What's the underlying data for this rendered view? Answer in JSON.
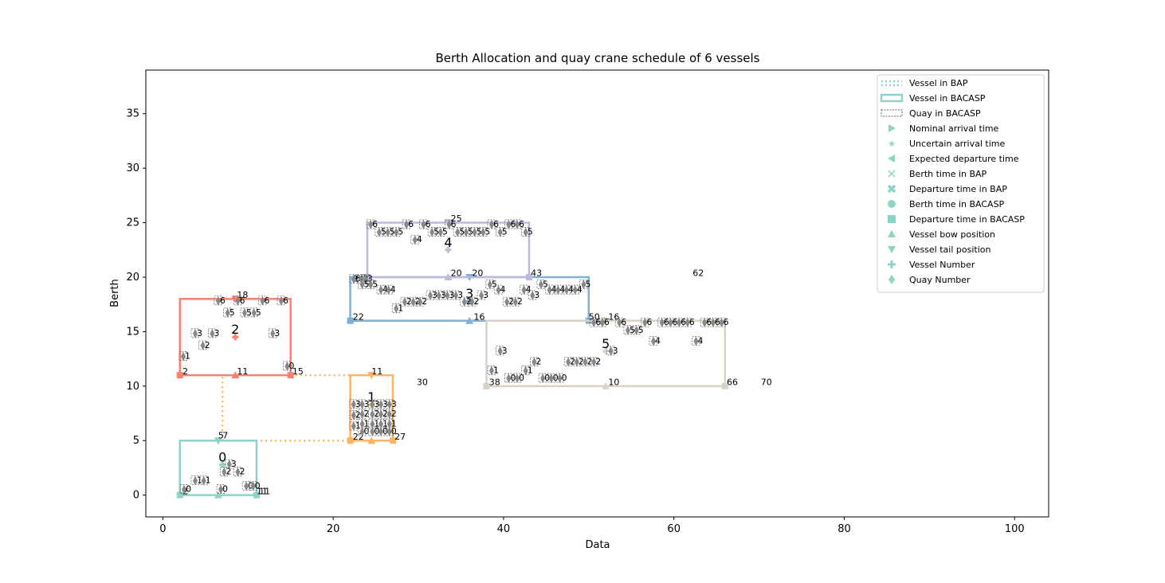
{
  "chart_data": {
    "type": "scatter",
    "title": "Berth Allocation and quay crane schedule  of 6 vessels",
    "xlabel": "Data",
    "ylabel": "Berth",
    "xlim": [
      -2,
      104
    ],
    "ylim": [
      -2,
      39
    ],
    "xticks": [
      0,
      20,
      40,
      60,
      80,
      100
    ],
    "yticks": [
      0,
      5,
      10,
      15,
      20,
      25,
      30,
      35
    ],
    "grid": false,
    "legend_position": "top-right",
    "colors": {
      "v0": "#8dd3c7",
      "v1": "#fdb462",
      "v2": "#fb8072",
      "v3": "#80b1d3",
      "v4": "#bebada",
      "v5": "#d9d2c7",
      "quay_gray": "#888888"
    },
    "legend": [
      {
        "label": "Vessel in BAP",
        "icon": "dotted-line"
      },
      {
        "label": "Vessel in BACASP",
        "icon": "solid-rect"
      },
      {
        "label": "Quay in BACASP",
        "icon": "dashed-rect"
      },
      {
        "label": "Nominal arrival time",
        "icon": "triangle-right"
      },
      {
        "label": "Uncertain arrival time",
        "icon": "star"
      },
      {
        "label": "Expected departure time",
        "icon": "triangle-left"
      },
      {
        "label": "Berth time in BAP",
        "icon": "x-thin"
      },
      {
        "label": "Departure time in BAP",
        "icon": "x-thick"
      },
      {
        "label": "Berth time in BACASP",
        "icon": "circle"
      },
      {
        "label": "Departure time in BACASP",
        "icon": "square"
      },
      {
        "label": "Vessel bow position",
        "icon": "triangle-up"
      },
      {
        "label": "Vessel tail position",
        "icon": "triangle-down"
      },
      {
        "label": "Vessel Number",
        "icon": "plus"
      },
      {
        "label": "Quay Number",
        "icon": "diamond"
      }
    ],
    "vessels": [
      {
        "id": "0",
        "color": "v0",
        "bacasp": [
          2,
          0,
          11,
          5
        ],
        "number_label": "0",
        "number_at": [
          7,
          2.8
        ],
        "labels": [
          {
            "x": 2.3,
            "y": 0.1,
            "t": "2"
          },
          {
            "x": 6.5,
            "y": 5.2,
            "t": "5"
          },
          {
            "x": 7,
            "y": 5.2,
            "t": "7"
          },
          {
            "x": 11,
            "y": 0.1,
            "t": "11"
          },
          {
            "x": 11.3,
            "y": 0.1,
            "t": "11"
          }
        ]
      },
      {
        "id": "1",
        "color": "v1",
        "bacasp": [
          22,
          5,
          27,
          11
        ],
        "number_label": "1",
        "number_at": [
          24.5,
          8.3
        ],
        "labels": [
          {
            "x": 22.3,
            "y": 5.1,
            "t": "22"
          },
          {
            "x": 27.2,
            "y": 5.1,
            "t": "27"
          },
          {
            "x": 24.5,
            "y": 11.1,
            "t": "11"
          }
        ]
      },
      {
        "id": "2",
        "color": "v2",
        "bacasp": [
          2,
          11,
          15,
          18
        ],
        "number_label": "2",
        "number_at": [
          8.5,
          14.5
        ],
        "labels": [
          {
            "x": 2.3,
            "y": 11.1,
            "t": "2"
          },
          {
            "x": 15.2,
            "y": 11.1,
            "t": "15"
          },
          {
            "x": 8.7,
            "y": 11.1,
            "t": "11"
          },
          {
            "x": 8.7,
            "y": 18.1,
            "t": "18"
          }
        ]
      },
      {
        "id": "3",
        "color": "v3",
        "bacasp": [
          22,
          16,
          50,
          20
        ],
        "number_label": "3",
        "number_at": [
          36,
          17.8
        ],
        "labels": [
          {
            "x": 22.3,
            "y": 16.1,
            "t": "22"
          },
          {
            "x": 50,
            "y": 16.1,
            "t": "50"
          },
          {
            "x": 36.5,
            "y": 16.1,
            "t": "16"
          },
          {
            "x": 22.3,
            "y": 19.6,
            "t": "24"
          }
        ]
      },
      {
        "id": "4",
        "color": "v4",
        "bacasp": [
          24,
          20,
          43,
          25
        ],
        "number_label": "4",
        "number_at": [
          33.5,
          22.5
        ],
        "labels": [
          {
            "x": 33.8,
            "y": 20.1,
            "t": "20"
          },
          {
            "x": 36.3,
            "y": 20.1,
            "t": "20"
          },
          {
            "x": 33.8,
            "y": 25.1,
            "t": "25"
          },
          {
            "x": 43.2,
            "y": 20.1,
            "t": "43"
          },
          {
            "x": 62.2,
            "y": 20.1,
            "t": "62"
          }
        ]
      },
      {
        "id": "5",
        "color": "v5",
        "bacasp": [
          38,
          10,
          66,
          16
        ],
        "number_label": "5",
        "number_at": [
          52,
          13.2
        ],
        "labels": [
          {
            "x": 38.3,
            "y": 10.1,
            "t": "38"
          },
          {
            "x": 66.2,
            "y": 10.1,
            "t": "66"
          },
          {
            "x": 52.3,
            "y": 10.1,
            "t": "10"
          },
          {
            "x": 52.3,
            "y": 16.1,
            "t": "16"
          },
          {
            "x": 70.2,
            "y": 10.1,
            "t": "70"
          },
          {
            "x": 29.8,
            "y": 10.1,
            "t": "30"
          }
        ]
      }
    ],
    "bap_links": [
      {
        "color": "v1",
        "points": [
          [
            7,
            5
          ],
          [
            7,
            11
          ]
        ]
      },
      {
        "color": "v1",
        "points": [
          [
            7,
            5
          ],
          [
            22,
            5
          ]
        ]
      },
      {
        "color": "v1",
        "points": [
          [
            15,
            11
          ],
          [
            24,
            11
          ]
        ]
      }
    ],
    "quay_labels": [
      {
        "x": 2.5,
        "y": 0.3,
        "t": "0"
      },
      {
        "x": 3.8,
        "y": 1.1,
        "t": "1"
      },
      {
        "x": 4.8,
        "y": 1.1,
        "t": "1"
      },
      {
        "x": 6.8,
        "y": 0.3,
        "t": "0"
      },
      {
        "x": 7.2,
        "y": 1.9,
        "t": "2"
      },
      {
        "x": 8.8,
        "y": 1.9,
        "t": "2"
      },
      {
        "x": 7.8,
        "y": 2.6,
        "t": "3"
      },
      {
        "x": 9.8,
        "y": 0.6,
        "t": "0"
      },
      {
        "x": 10.6,
        "y": 0.6,
        "t": "0"
      },
      {
        "x": 2.4,
        "y": 12.5,
        "t": "1"
      },
      {
        "x": 3.8,
        "y": 14.6,
        "t": "3"
      },
      {
        "x": 4.7,
        "y": 13.5,
        "t": "2"
      },
      {
        "x": 5.8,
        "y": 14.6,
        "t": "3"
      },
      {
        "x": 6.5,
        "y": 17.6,
        "t": "6"
      },
      {
        "x": 7.6,
        "y": 16.5,
        "t": "5"
      },
      {
        "x": 8.8,
        "y": 17.6,
        "t": "6"
      },
      {
        "x": 9.6,
        "y": 16.5,
        "t": "5"
      },
      {
        "x": 10.7,
        "y": 16.5,
        "t": "5"
      },
      {
        "x": 11.7,
        "y": 17.6,
        "t": "6"
      },
      {
        "x": 12.9,
        "y": 14.6,
        "t": "3"
      },
      {
        "x": 13.9,
        "y": 17.6,
        "t": "6"
      },
      {
        "x": 14.6,
        "y": 11.6,
        "t": "0"
      },
      {
        "x": 22.4,
        "y": 6.1,
        "t": "1"
      },
      {
        "x": 22.4,
        "y": 7.1,
        "t": "2"
      },
      {
        "x": 22.4,
        "y": 8.1,
        "t": "3"
      },
      {
        "x": 23.4,
        "y": 5.6,
        "t": "0"
      },
      {
        "x": 24.6,
        "y": 5.6,
        "t": "0"
      },
      {
        "x": 25.6,
        "y": 5.6,
        "t": "0"
      },
      {
        "x": 26.6,
        "y": 5.6,
        "t": "0"
      },
      {
        "x": 23.4,
        "y": 6.3,
        "t": "1"
      },
      {
        "x": 24.6,
        "y": 6.3,
        "t": "1"
      },
      {
        "x": 25.6,
        "y": 6.3,
        "t": "1"
      },
      {
        "x": 26.6,
        "y": 6.3,
        "t": "1"
      },
      {
        "x": 23.4,
        "y": 7.2,
        "t": "2"
      },
      {
        "x": 24.6,
        "y": 7.2,
        "t": "2"
      },
      {
        "x": 25.6,
        "y": 7.2,
        "t": "2"
      },
      {
        "x": 26.6,
        "y": 7.2,
        "t": "2"
      },
      {
        "x": 23.4,
        "y": 8.1,
        "t": "3"
      },
      {
        "x": 24.6,
        "y": 8.1,
        "t": "3"
      },
      {
        "x": 25.6,
        "y": 8.1,
        "t": "3"
      },
      {
        "x": 26.6,
        "y": 8.1,
        "t": "3"
      },
      {
        "x": 22.4,
        "y": 19.6,
        "t": "6"
      },
      {
        "x": 23.3,
        "y": 19.6,
        "t": "2"
      },
      {
        "x": 23.8,
        "y": 19.6,
        "t": "3"
      },
      {
        "x": 23.4,
        "y": 19.1,
        "t": "5"
      },
      {
        "x": 24.4,
        "y": 19.1,
        "t": "5"
      },
      {
        "x": 25.6,
        "y": 18.6,
        "t": "4"
      },
      {
        "x": 26.5,
        "y": 18.6,
        "t": "4"
      },
      {
        "x": 27.4,
        "y": 16.9,
        "t": "1"
      },
      {
        "x": 28.4,
        "y": 17.5,
        "t": "2"
      },
      {
        "x": 29.4,
        "y": 17.5,
        "t": "2"
      },
      {
        "x": 30.2,
        "y": 17.5,
        "t": "2"
      },
      {
        "x": 31.4,
        "y": 18.1,
        "t": "3"
      },
      {
        "x": 32.4,
        "y": 18.1,
        "t": "3"
      },
      {
        "x": 33.4,
        "y": 18.1,
        "t": "3"
      },
      {
        "x": 34.4,
        "y": 18.1,
        "t": "3"
      },
      {
        "x": 35.4,
        "y": 17.5,
        "t": "2"
      },
      {
        "x": 36.3,
        "y": 17.5,
        "t": "2"
      },
      {
        "x": 37.4,
        "y": 18.1,
        "t": "3"
      },
      {
        "x": 38.4,
        "y": 19.1,
        "t": "5"
      },
      {
        "x": 39.4,
        "y": 18.6,
        "t": "4"
      },
      {
        "x": 40.4,
        "y": 17.5,
        "t": "2"
      },
      {
        "x": 41.4,
        "y": 17.5,
        "t": "2"
      },
      {
        "x": 42.4,
        "y": 18.6,
        "t": "4"
      },
      {
        "x": 43.4,
        "y": 18.1,
        "t": "3"
      },
      {
        "x": 44.4,
        "y": 19.1,
        "t": "5"
      },
      {
        "x": 45.4,
        "y": 18.6,
        "t": "4"
      },
      {
        "x": 46.4,
        "y": 18.6,
        "t": "4"
      },
      {
        "x": 47.4,
        "y": 18.6,
        "t": "4"
      },
      {
        "x": 48.4,
        "y": 18.6,
        "t": "4"
      },
      {
        "x": 49.4,
        "y": 19.1,
        "t": "5"
      },
      {
        "x": 24.4,
        "y": 24.6,
        "t": "6"
      },
      {
        "x": 25.4,
        "y": 23.9,
        "t": "5"
      },
      {
        "x": 26.4,
        "y": 23.9,
        "t": "5"
      },
      {
        "x": 27.4,
        "y": 23.9,
        "t": "5"
      },
      {
        "x": 28.6,
        "y": 24.6,
        "t": "6"
      },
      {
        "x": 29.6,
        "y": 23.2,
        "t": "4"
      },
      {
        "x": 30.6,
        "y": 24.6,
        "t": "6"
      },
      {
        "x": 31.6,
        "y": 23.9,
        "t": "5"
      },
      {
        "x": 32.6,
        "y": 23.9,
        "t": "5"
      },
      {
        "x": 33.6,
        "y": 24.6,
        "t": "6"
      },
      {
        "x": 34.6,
        "y": 23.9,
        "t": "5"
      },
      {
        "x": 35.6,
        "y": 23.9,
        "t": "5"
      },
      {
        "x": 36.6,
        "y": 23.9,
        "t": "5"
      },
      {
        "x": 37.6,
        "y": 23.9,
        "t": "5"
      },
      {
        "x": 38.6,
        "y": 24.6,
        "t": "6"
      },
      {
        "x": 39.6,
        "y": 23.9,
        "t": "5"
      },
      {
        "x": 40.6,
        "y": 24.6,
        "t": "6"
      },
      {
        "x": 41.6,
        "y": 24.6,
        "t": "6"
      },
      {
        "x": 42.6,
        "y": 23.9,
        "t": "5"
      },
      {
        "x": 38.6,
        "y": 11.2,
        "t": "1"
      },
      {
        "x": 39.6,
        "y": 13.0,
        "t": "3"
      },
      {
        "x": 40.6,
        "y": 10.5,
        "t": "0"
      },
      {
        "x": 41.6,
        "y": 10.5,
        "t": "0"
      },
      {
        "x": 42.6,
        "y": 11.2,
        "t": "1"
      },
      {
        "x": 43.6,
        "y": 12.0,
        "t": "2"
      },
      {
        "x": 44.6,
        "y": 10.5,
        "t": "0"
      },
      {
        "x": 45.6,
        "y": 10.5,
        "t": "0"
      },
      {
        "x": 46.6,
        "y": 10.5,
        "t": "0"
      },
      {
        "x": 47.6,
        "y": 12.0,
        "t": "2"
      },
      {
        "x": 48.6,
        "y": 12.0,
        "t": "2"
      },
      {
        "x": 49.6,
        "y": 12.0,
        "t": "2"
      },
      {
        "x": 50.6,
        "y": 12.0,
        "t": "2"
      },
      {
        "x": 52.6,
        "y": 13.0,
        "t": "3"
      },
      {
        "x": 50.6,
        "y": 15.6,
        "t": "6"
      },
      {
        "x": 51.6,
        "y": 15.6,
        "t": "6"
      },
      {
        "x": 53.6,
        "y": 15.6,
        "t": "6"
      },
      {
        "x": 54.6,
        "y": 14.9,
        "t": "5"
      },
      {
        "x": 55.6,
        "y": 14.9,
        "t": "5"
      },
      {
        "x": 56.6,
        "y": 15.6,
        "t": "6"
      },
      {
        "x": 57.6,
        "y": 13.9,
        "t": "4"
      },
      {
        "x": 58.6,
        "y": 15.6,
        "t": "6"
      },
      {
        "x": 59.6,
        "y": 15.6,
        "t": "6"
      },
      {
        "x": 60.6,
        "y": 15.6,
        "t": "6"
      },
      {
        "x": 61.6,
        "y": 15.6,
        "t": "6"
      },
      {
        "x": 62.6,
        "y": 13.9,
        "t": "4"
      },
      {
        "x": 63.6,
        "y": 15.6,
        "t": "6"
      },
      {
        "x": 64.6,
        "y": 15.6,
        "t": "6"
      },
      {
        "x": 65.6,
        "y": 15.6,
        "t": "6"
      }
    ]
  }
}
